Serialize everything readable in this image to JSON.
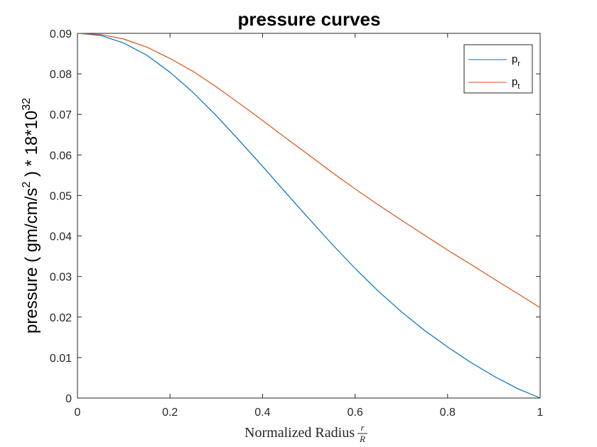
{
  "chart_data": {
    "type": "line",
    "title": "pressure curves",
    "xlabel": "Normalized Radius",
    "xlabel_fraction": {
      "numerator": "r",
      "denominator": "R"
    },
    "ylabel": "pressure ( gm/cm/s",
    "ylabel_sup": "2",
    "ylabel_tail": " ) * 18*10",
    "ylabel_exp": "32",
    "xlim": [
      0,
      1
    ],
    "ylim": [
      0,
      0.09
    ],
    "xticks": [
      "0",
      "0.2",
      "0.4",
      "0.6",
      "0.8",
      "1"
    ],
    "yticks": [
      "0",
      "0.01",
      "0.02",
      "0.03",
      "0.04",
      "0.05",
      "0.06",
      "0.07",
      "0.08",
      "0.09"
    ],
    "grid": false,
    "legend_position": "top-right",
    "series": [
      {
        "name": "p",
        "subscript": "r",
        "color": "#0072BD",
        "x": [
          0,
          0.05,
          0.1,
          0.15,
          0.2,
          0.25,
          0.3,
          0.35,
          0.4,
          0.45,
          0.5,
          0.55,
          0.6,
          0.65,
          0.7,
          0.75,
          0.8,
          0.85,
          0.9,
          0.95,
          1.0
        ],
        "y": [
          0.09,
          0.0895,
          0.0876,
          0.0846,
          0.0804,
          0.0754,
          0.0697,
          0.0635,
          0.0572,
          0.0507,
          0.0443,
          0.038,
          0.032,
          0.0264,
          0.0213,
          0.0167,
          0.0126,
          0.0088,
          0.0054,
          0.0024,
          0.0
        ]
      },
      {
        "name": "p",
        "subscript": "t",
        "color": "#D95319",
        "x": [
          0,
          0.05,
          0.1,
          0.15,
          0.2,
          0.25,
          0.3,
          0.35,
          0.4,
          0.45,
          0.5,
          0.55,
          0.6,
          0.65,
          0.7,
          0.75,
          0.8,
          0.85,
          0.9,
          0.95,
          1.0
        ],
        "y": [
          0.09,
          0.0897,
          0.0886,
          0.0866,
          0.0838,
          0.0806,
          0.0768,
          0.0727,
          0.0685,
          0.0642,
          0.06,
          0.0557,
          0.0516,
          0.0477,
          0.0439,
          0.0402,
          0.0365,
          0.033,
          0.0294,
          0.0259,
          0.0223
        ]
      }
    ]
  }
}
